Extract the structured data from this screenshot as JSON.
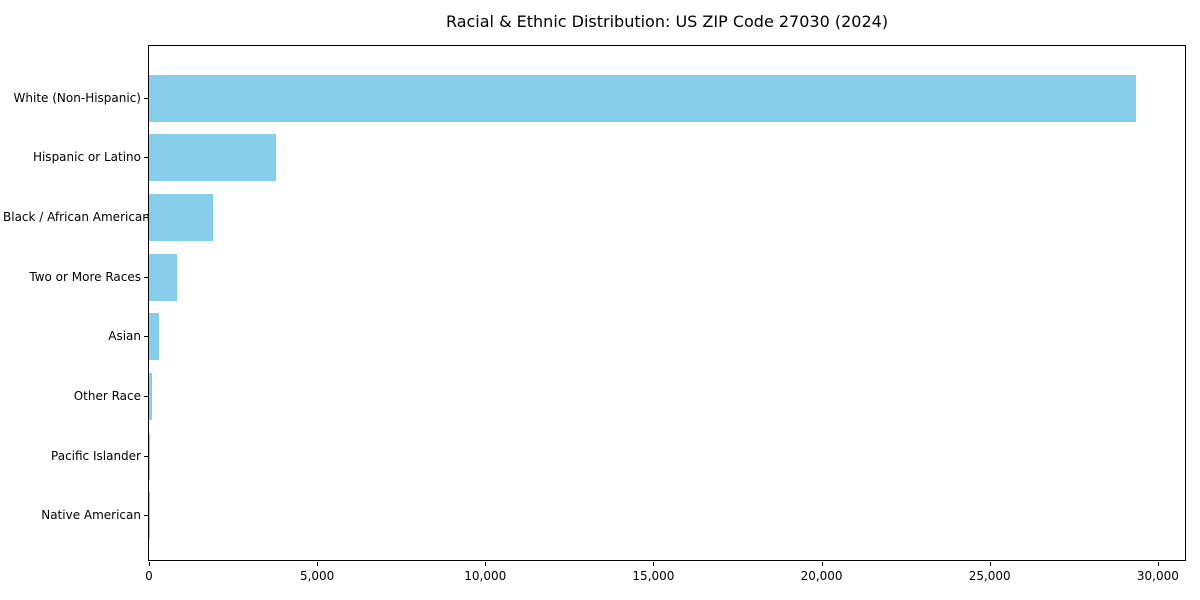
{
  "title": "Racial & Ethnic Distribution: US ZIP Code 27030 (2024)",
  "colors": {
    "bar": "#87CEEB",
    "spine": "#000000",
    "text": "#000000",
    "background": "#ffffff"
  },
  "chart_data": {
    "type": "bar",
    "orientation": "horizontal",
    "title": "Racial & Ethnic Distribution: US ZIP Code 27030 (2024)",
    "categories": [
      "White (Non-Hispanic)",
      "Hispanic or Latino",
      "Black / African American",
      "Two or More Races",
      "Asian",
      "Other Race",
      "Pacific Islander",
      "Native American"
    ],
    "values": [
      29340,
      3770,
      1900,
      830,
      290,
      95,
      10,
      4
    ],
    "bar_color": "#87CEEB",
    "xlabel": "",
    "ylabel": "",
    "xlim": [
      0,
      30807
    ],
    "xticks": [
      0,
      5000,
      10000,
      15000,
      20000,
      25000,
      30000
    ],
    "xtick_labels": [
      "0",
      "5,000",
      "10,000",
      "15,000",
      "20,000",
      "25,000",
      "30,000"
    ],
    "grid": false,
    "legend": null,
    "sorted": "descending"
  }
}
